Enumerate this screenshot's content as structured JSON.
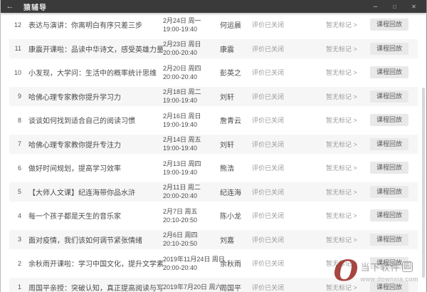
{
  "titlebar": {
    "back_icon": "←",
    "title": "猿辅导",
    "minimize_icon": "–",
    "maximize_icon": "□",
    "close_icon": "✕"
  },
  "labels": {
    "evaluation": "评价已关闭",
    "mark": "暂无标记 >",
    "replay": "课程回放"
  },
  "list": {
    "rows": [
      {
        "num": "12",
        "title": "表达与演讲：你离明白有序只差三步",
        "date": "2月24日 周一",
        "time": "19:00-19:40",
        "teacher": "何运晨"
      },
      {
        "num": "11",
        "title": "康震开课啦：品读中华诗文，感受英雄力量",
        "date": "2月23日 周日",
        "time": "20:00-20:40",
        "teacher": "康震"
      },
      {
        "num": "10",
        "title": "小发现，大学问：生活中的概率统计思维",
        "date": "2月20日 周四",
        "time": "20:00-20:40",
        "teacher": "彭英之"
      },
      {
        "num": "9",
        "title": "哈佛心理专家教你提升学习力",
        "date": "2月18日 周二",
        "time": "19:00-19:40",
        "teacher": "刘轩"
      },
      {
        "num": "8",
        "title": "谈谈如何找到适合自己的阅读习惯",
        "date": "2月16日 周日",
        "time": "19:00-19:40",
        "teacher": "詹青云"
      },
      {
        "num": "7",
        "title": "哈佛心理专家教你提升专注力",
        "date": "2月14日 周五",
        "time": "19:00-19:40",
        "teacher": "刘轩"
      },
      {
        "num": "6",
        "title": "做好时间规划，提高学习效率",
        "date": "2月13日 周四",
        "time": "19:00-19:40",
        "teacher": "熊浩"
      },
      {
        "num": "5",
        "title": "【大师人文课】纪连海带你品水浒",
        "date": "2月11日 周二",
        "time": "20:00-20:40",
        "teacher": "纪连海"
      },
      {
        "num": "4",
        "title": "每一个孩子都是天生的音乐家",
        "date": "2月7日 周五",
        "time": "20:10-20:50",
        "teacher": "陈小龙"
      },
      {
        "num": "3",
        "title": "面对疫情，我们该如何调节紧张情绪",
        "date": "2月6日 周四",
        "time": "20:10-20:50",
        "teacher": "刘嘉"
      },
      {
        "num": "2",
        "title": "余秋雨开课啦：学习中国文化，提升文学素养",
        "date": "2019年11月24日 周日",
        "time": "20:00-20:40",
        "teacher": "余秋雨"
      },
      {
        "num": "1",
        "title": "周国平亲授：突破认知，真正提高阅读与写作能力",
        "date": "2019年7月20日 周六",
        "time": "",
        "teacher": "周国平"
      }
    ]
  },
  "watermark": {
    "logo_letter": "O",
    "brand": "当下软件",
    "brand_boxed": "园",
    "url": "www.downxia.com"
  },
  "colors": {
    "titlebar_bg": "#3a3a3a",
    "row_stripe": "#f6f6f6",
    "main_text": "#4a4a4a",
    "muted_text": "#9a9a9a",
    "replay_button_bg": "#e9e9e9",
    "watermark_logo": "#a03730"
  }
}
